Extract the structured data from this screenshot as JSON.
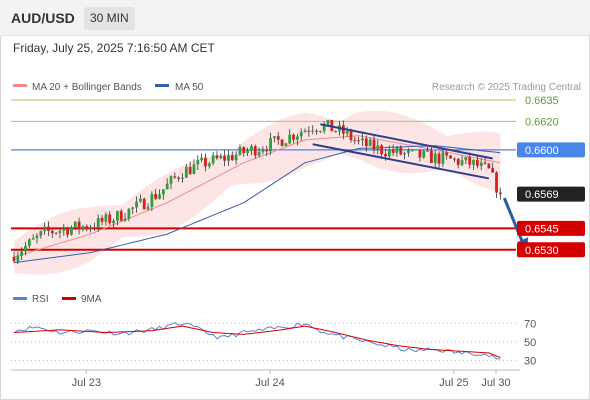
{
  "header": {
    "symbol": "AUD/USD",
    "timeframe": "30 MIN",
    "datetime": "Friday, July 25, 2025 7:16:50 AM CET"
  },
  "legend": {
    "ma20": "MA 20 + Bollinger Bands",
    "ma50": "MA 50",
    "credit": "Research © 2025 Trading Central",
    "rsi": "RSI",
    "rsi_ma": "9MA"
  },
  "colors": {
    "bullish": "#2e9e3e",
    "bearish": "#d62020",
    "ma20": "#f08a8a",
    "bollinger_fill": "#fde0e0",
    "ma50": "#3a5fa8",
    "support": "#d40000",
    "resistance": "#9ccc65",
    "pivot": "#4a86e8",
    "channel": "#2a3f8f",
    "rsi": "#5b7fd6",
    "rsi_ma": "#d40000"
  },
  "chart_data": [
    {
      "type": "candlestick",
      "y_range": [
        0.6506,
        0.6642
      ],
      "levels": [
        {
          "value": 0.6635,
          "label": "0.6635",
          "kind": "resistance"
        },
        {
          "value": 0.662,
          "label": "0.6620",
          "kind": "resistance"
        },
        {
          "value": 0.66,
          "label": "0.6600",
          "kind": "pivot"
        },
        {
          "value": 0.6545,
          "label": "0.6545",
          "kind": "support"
        },
        {
          "value": 0.653,
          "label": "0.6530",
          "kind": "support"
        }
      ],
      "last_price": {
        "value": 0.6569,
        "label": "0.6569"
      },
      "x_ticks": [
        "Jul 23",
        "Jul 24",
        "Jul 25",
        "Jul 30"
      ],
      "x_tick_pos": [
        10,
        58,
        106,
        130
      ],
      "bars": 130,
      "close_anchors": [
        [
          0,
          0.6527
        ],
        [
          4,
          0.6534
        ],
        [
          8,
          0.6542
        ],
        [
          14,
          0.6545
        ],
        [
          20,
          0.6547
        ],
        [
          26,
          0.6552
        ],
        [
          32,
          0.656
        ],
        [
          38,
          0.657
        ],
        [
          44,
          0.6585
        ],
        [
          50,
          0.6591
        ],
        [
          56,
          0.6595
        ],
        [
          62,
          0.66
        ],
        [
          68,
          0.6605
        ],
        [
          74,
          0.6612
        ],
        [
          78,
          0.6617
        ],
        [
          82,
          0.6616
        ],
        [
          86,
          0.6612
        ],
        [
          90,
          0.6605
        ],
        [
          96,
          0.66
        ],
        [
          102,
          0.6597
        ],
        [
          108,
          0.6595
        ],
        [
          114,
          0.6593
        ],
        [
          120,
          0.659
        ],
        [
          124,
          0.6585
        ],
        [
          127,
          0.6569
        ]
      ],
      "ma20_anchors": [
        [
          0,
          0.6525
        ],
        [
          20,
          0.6541
        ],
        [
          40,
          0.6563
        ],
        [
          60,
          0.6591
        ],
        [
          76,
          0.6607
        ],
        [
          90,
          0.661
        ],
        [
          110,
          0.66
        ],
        [
          127,
          0.6591
        ]
      ],
      "ma50_anchors": [
        [
          0,
          0.6521
        ],
        [
          20,
          0.6528
        ],
        [
          40,
          0.6541
        ],
        [
          60,
          0.6563
        ],
        [
          76,
          0.6591
        ],
        [
          90,
          0.6601
        ],
        [
          110,
          0.6603
        ],
        [
          127,
          0.6598
        ]
      ],
      "bollinger_width": 0.0016,
      "channel": {
        "upper": [
          [
            80,
            0.6618
          ],
          [
            125,
            0.6594
          ]
        ],
        "lower": [
          [
            78,
            0.6604
          ],
          [
            124,
            0.658
          ]
        ]
      },
      "projection": {
        "from": [
          127,
          0.6569
        ],
        "to": [
          134,
          0.653
        ]
      }
    },
    {
      "type": "line",
      "name": "RSI",
      "y_range": [
        25,
        80
      ],
      "y_ticks": [
        70,
        50,
        30
      ],
      "rsi_anchors": [
        [
          0,
          62
        ],
        [
          6,
          66
        ],
        [
          12,
          60
        ],
        [
          20,
          62
        ],
        [
          28,
          59
        ],
        [
          36,
          63
        ],
        [
          44,
          70
        ],
        [
          48,
          64
        ],
        [
          54,
          54
        ],
        [
          60,
          60
        ],
        [
          66,
          63
        ],
        [
          72,
          67
        ],
        [
          76,
          70
        ],
        [
          80,
          62
        ],
        [
          86,
          55
        ],
        [
          92,
          50
        ],
        [
          98,
          45
        ],
        [
          104,
          40
        ],
        [
          110,
          42
        ],
        [
          116,
          38
        ],
        [
          122,
          38
        ],
        [
          127,
          31
        ]
      ],
      "ma9_anchors": [
        [
          0,
          60
        ],
        [
          12,
          63
        ],
        [
          24,
          60
        ],
        [
          36,
          62
        ],
        [
          44,
          67
        ],
        [
          52,
          60
        ],
        [
          60,
          58
        ],
        [
          70,
          63
        ],
        [
          76,
          67
        ],
        [
          84,
          60
        ],
        [
          92,
          52
        ],
        [
          100,
          46
        ],
        [
          108,
          42
        ],
        [
          116,
          40
        ],
        [
          124,
          38
        ],
        [
          127,
          33
        ]
      ]
    }
  ]
}
